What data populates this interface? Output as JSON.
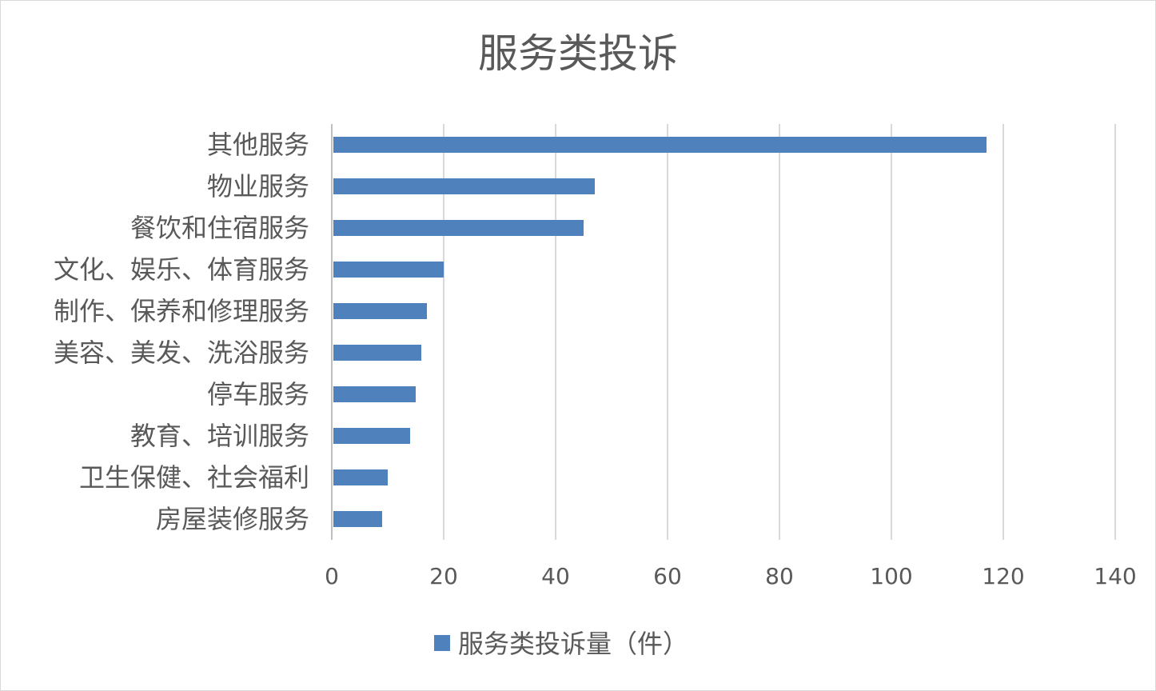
{
  "chart_data": {
    "type": "bar",
    "orientation": "horizontal",
    "title": "服务类投诉",
    "categories": [
      "其他服务",
      "物业服务",
      "餐饮和住宿服务",
      "文化、娱乐、体育服务",
      "制作、保养和修理服务",
      "美容、美发、洗浴服务",
      "停车服务",
      "教育、培训服务",
      "卫生保健、社会福利",
      "房屋装修服务"
    ],
    "series": [
      {
        "name": "服务类投诉量（件）",
        "values": [
          117,
          47,
          45,
          20,
          17,
          16,
          15,
          14,
          10,
          9
        ],
        "color": "#4f81bd"
      }
    ],
    "xlim": [
      0,
      140
    ],
    "x_ticks": [
      0,
      20,
      40,
      60,
      80,
      100,
      120,
      140
    ],
    "grid": true,
    "legend_position": "bottom"
  }
}
